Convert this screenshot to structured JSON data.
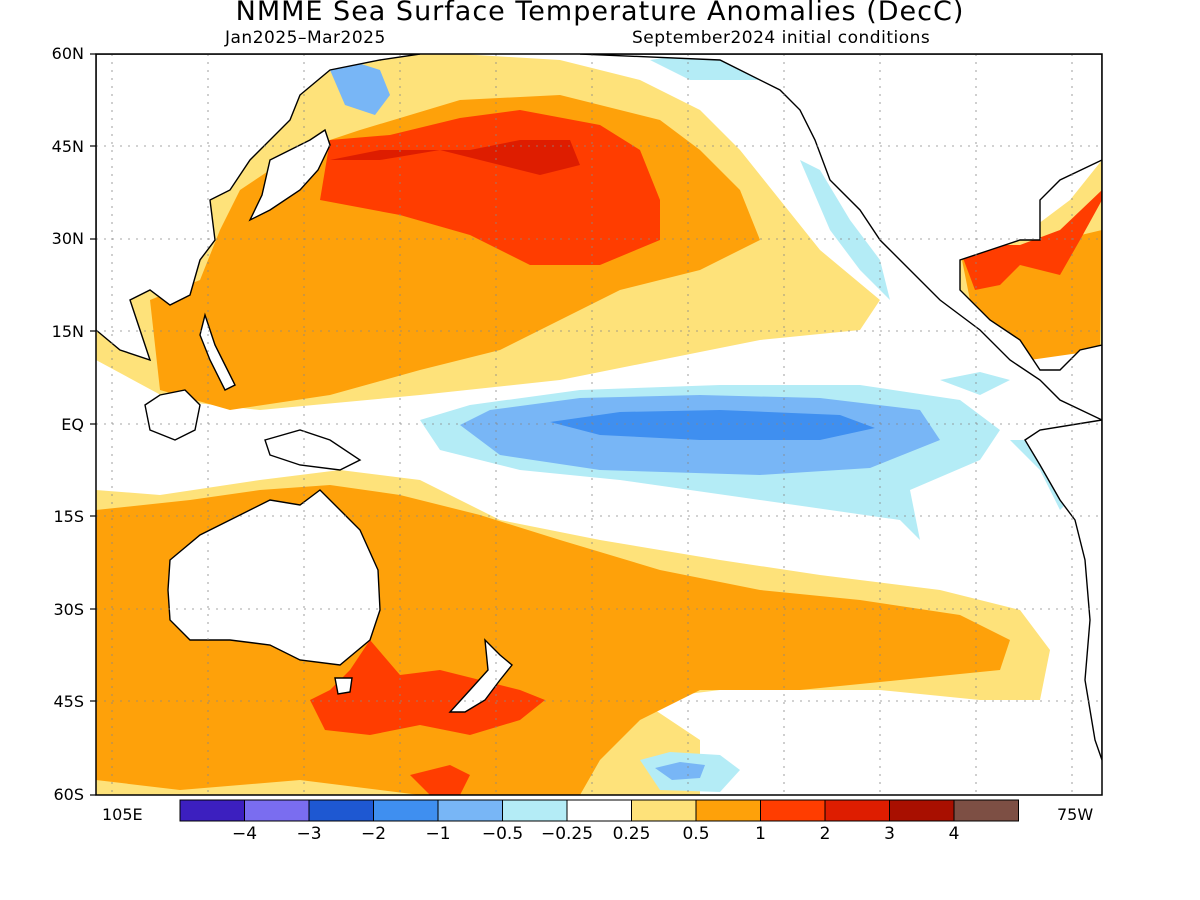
{
  "title": "NMME Sea Surface Temperature Anomalies (DecC)",
  "subtitle_left": "Jan2025–Mar2025",
  "subtitle_right": "September2024 initial conditions",
  "lat_labels": [
    "60N",
    "45N",
    "30N",
    "15N",
    "EQ",
    "15S",
    "30S",
    "45S",
    "60S"
  ],
  "lon_labels": {
    "left": "105E",
    "right": "75W"
  },
  "colorbar": {
    "colors": [
      "#3c1fbf",
      "#7a6df0",
      "#1e58d2",
      "#3f8ff0",
      "#78b6f6",
      "#b4ecf6",
      "#ffffff",
      "#fee27a",
      "#fea10a",
      "#ff3d00",
      "#de1d00",
      "#a80f00",
      "#7d4f44"
    ],
    "labels": [
      "−4",
      "−3",
      "−2",
      "−1",
      "−0.5",
      "−0.25",
      "0.25",
      "0.5",
      "1",
      "2",
      "3",
      "4"
    ]
  },
  "map_colors": {
    "pale": "#fee27a",
    "orange": "#fea10a",
    "red": "#ff3d00",
    "darkred": "#de1d00",
    "cyan": "#b4ecf6",
    "lightblue": "#78b6f6",
    "blue": "#3f8ff0",
    "land": "#ffffff"
  }
}
